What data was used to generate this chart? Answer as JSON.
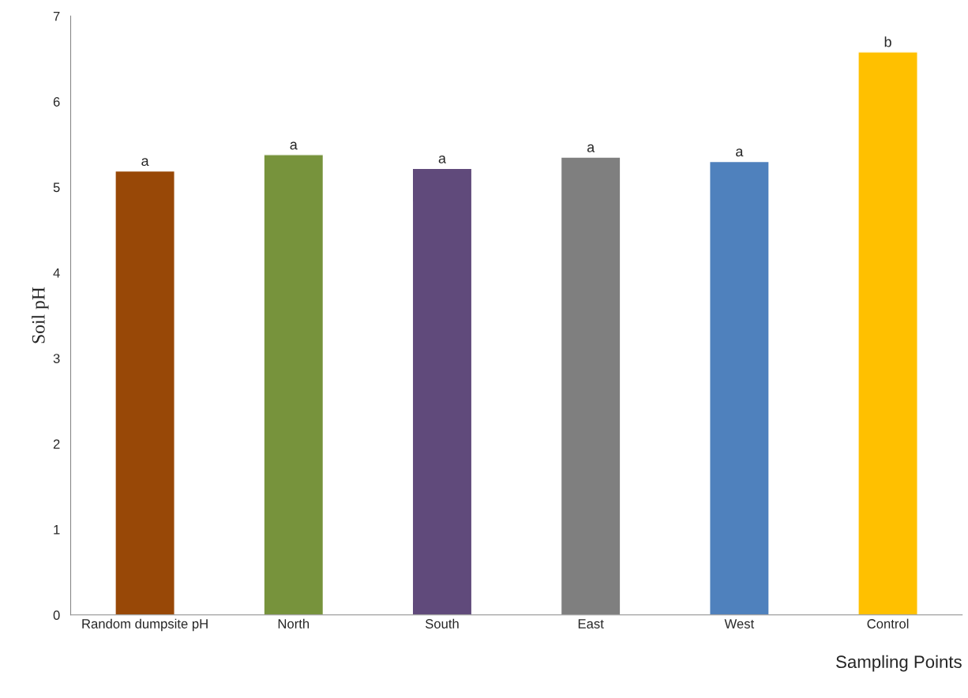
{
  "chart_data": {
    "type": "bar",
    "categories": [
      "Random dumpsite pH",
      "North",
      "South",
      "East",
      "West",
      "Control"
    ],
    "values": [
      5.19,
      5.38,
      5.22,
      5.35,
      5.3,
      6.58
    ],
    "colors": [
      "#984807",
      "#77933c",
      "#604a7b",
      "#7f7f7f",
      "#4f81bd",
      "#ffc000"
    ],
    "xlabel": "Sampling Points",
    "ylabel": "Soil pH",
    "ylim": [
      0,
      7
    ],
    "yticks": [
      0,
      1,
      2,
      3,
      4,
      5,
      6,
      7
    ],
    "grid": false,
    "legend": false,
    "annotations": [
      {
        "text": "a",
        "x": "Random dumpsite pH",
        "y": 5.19
      },
      {
        "text": "a",
        "x": "North",
        "y": 5.38
      },
      {
        "text": "a",
        "x": "South",
        "y": 5.22
      },
      {
        "text": "a",
        "x": "East",
        "y": 5.35
      },
      {
        "text": "a",
        "x": "West",
        "y": 5.3
      },
      {
        "text": "b",
        "x": "Control",
        "y": 6.58
      }
    ]
  }
}
